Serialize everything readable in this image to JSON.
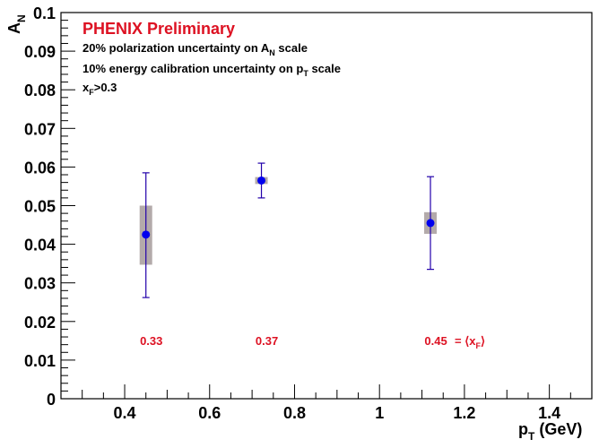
{
  "chart_data": {
    "type": "scatter",
    "title": "PHENIX Preliminary",
    "annotations": [
      {
        "main": "20% polarization uncertainty on A",
        "sub": "N",
        "tail": " scale"
      },
      {
        "main": "10% energy calibration uncertainty on p",
        "sub": "T",
        "tail": " scale"
      },
      {
        "main": "x",
        "sub": "F",
        "tail": ">0.3"
      }
    ],
    "ylabel": {
      "main": "A",
      "sub": "N"
    },
    "xlabel": {
      "main": "p",
      "sub": "T",
      "tail": " (GeV)"
    },
    "xlim": [
      0.25,
      1.5
    ],
    "ylim": [
      0,
      0.1
    ],
    "x_ticks": [
      "0.4",
      "0.6",
      "0.8",
      "1",
      "1.2",
      "1.4"
    ],
    "y_ticks": [
      "0",
      "0.01",
      "0.02",
      "0.03",
      "0.04",
      "0.05",
      "0.06",
      "0.07",
      "0.08",
      "0.09",
      "0.1"
    ],
    "points": [
      {
        "x": 0.45,
        "y": 0.0425,
        "stat_err": [
          0.0163,
          0.016
        ],
        "sys_err": [
          0.0078,
          0.0075
        ],
        "xF_label": "0.33"
      },
      {
        "x": 0.722,
        "y": 0.0565,
        "stat_err": [
          0.0045,
          0.0045
        ],
        "sys_err": [
          0.0009,
          0.0009
        ],
        "xF_label": "0.37"
      },
      {
        "x": 1.12,
        "y": 0.0455,
        "stat_err": [
          0.012,
          0.012
        ],
        "sys_err": [
          0.0028,
          0.0028
        ],
        "xF_label": "0.45"
      }
    ],
    "xF_legend": "= ⟨x",
    "xF_legend_sub": "F",
    "xF_legend_tail": "⟩",
    "grid": false,
    "colors": {
      "marker": "#0000ee",
      "stat_bar": "#2200aa",
      "sys_box": "#b3aaaa",
      "title": "#dd1122",
      "label": "#dd1122"
    }
  }
}
